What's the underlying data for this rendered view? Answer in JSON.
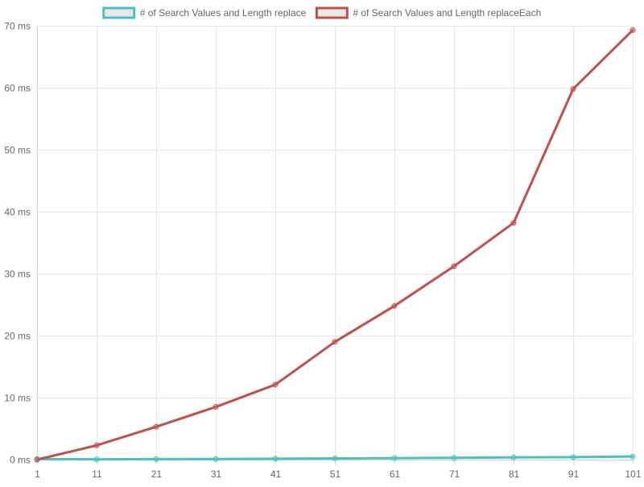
{
  "chart_data": {
    "type": "line",
    "x": [
      1,
      11,
      21,
      31,
      41,
      51,
      61,
      71,
      81,
      91,
      101
    ],
    "series": [
      {
        "name": "# of Search Values and Length replace",
        "color": "#4bc0c0",
        "values": [
          0.1,
          0.05,
          0.08,
          0.1,
          0.15,
          0.2,
          0.25,
          0.3,
          0.35,
          0.4,
          0.5
        ]
      },
      {
        "name": "# of Search Values and Length replaceEach",
        "color": "#c0504d",
        "values": [
          0.0,
          2.3,
          5.3,
          8.5,
          12.1,
          19.0,
          24.8,
          31.2,
          38.2,
          59.8,
          69.3
        ]
      }
    ],
    "y_ticks": [
      0,
      10,
      20,
      30,
      40,
      50,
      60,
      70
    ],
    "y_unit": "ms",
    "ylim": [
      0,
      70
    ],
    "grid": true,
    "legend": "top-center",
    "title": "",
    "xlabel": "",
    "ylabel": ""
  }
}
